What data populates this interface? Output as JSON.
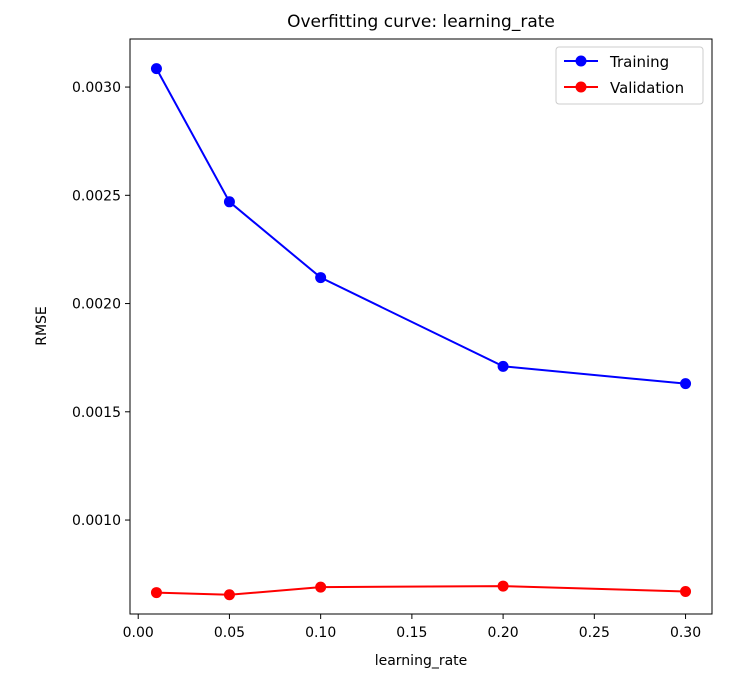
{
  "chart_data": {
    "type": "line",
    "title": "Overfitting curve: learning_rate",
    "xlabel": "learning_rate",
    "ylabel": "RMSE",
    "x": [
      0.01,
      0.05,
      0.1,
      0.2,
      0.3
    ],
    "xlim": [
      -0.0045,
      0.3145
    ],
    "ylim": [
      0.000566,
      0.003222
    ],
    "xticks": [
      0.0,
      0.05,
      0.1,
      0.15,
      0.2,
      0.25,
      0.3
    ],
    "xtick_labels": [
      "0.00",
      "0.05",
      "0.10",
      "0.15",
      "0.20",
      "0.25",
      "0.30"
    ],
    "yticks": [
      0.001,
      0.0015,
      0.002,
      0.0025,
      0.003
    ],
    "ytick_labels": [
      "0.0010",
      "0.0015",
      "0.0020",
      "0.0025",
      "0.0030"
    ],
    "grid": false,
    "legend_position": "top-right",
    "series": [
      {
        "name": "Training",
        "color": "#0000ff",
        "marker": "circle",
        "values": [
          0.003085,
          0.00247,
          0.00212,
          0.00171,
          0.00163
        ]
      },
      {
        "name": "Validation",
        "color": "#ff0000",
        "marker": "circle",
        "values": [
          0.000665,
          0.000655,
          0.00069,
          0.000695,
          0.00067
        ]
      }
    ]
  }
}
